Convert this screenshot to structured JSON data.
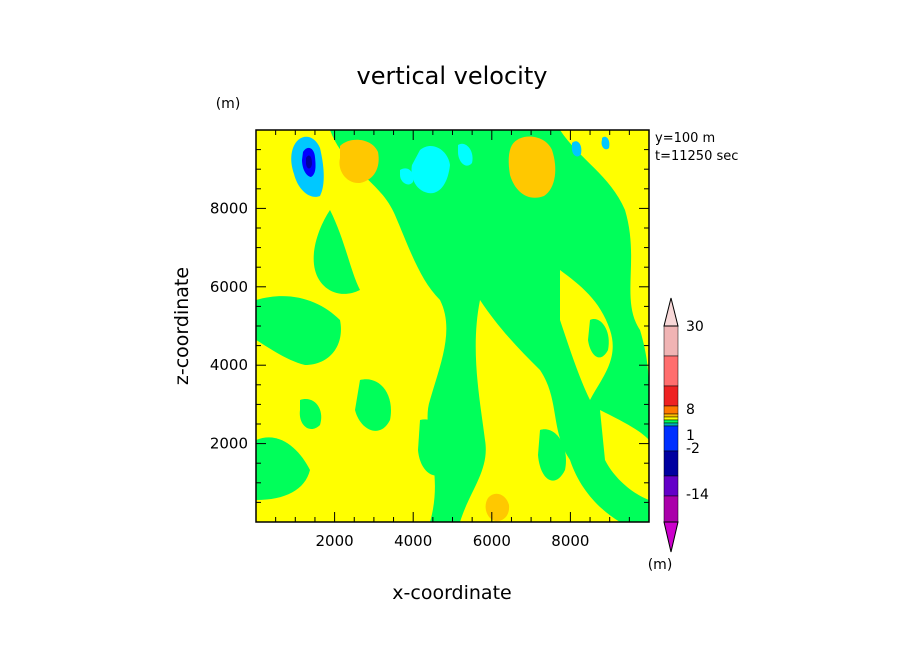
{
  "chart_data": {
    "type": "heatmap",
    "title": "vertical velocity",
    "xlabel": "x-coordinate",
    "ylabel": "z-coordinate",
    "x_unit": "(m)",
    "y_unit": "(m)",
    "colorbar_unit": "(m)",
    "annotation_lines": [
      "y=100 m",
      "t=11250 sec"
    ],
    "xlim": [
      0,
      10000
    ],
    "ylim": [
      0,
      10000
    ],
    "x_ticks": [
      2000,
      4000,
      6000,
      8000
    ],
    "y_ticks": [
      2000,
      4000,
      6000,
      8000
    ],
    "x_tick_labels": [
      "2000",
      "4000",
      "6000",
      "8000"
    ],
    "y_tick_labels": [
      "2000",
      "4000",
      "6000",
      "8000"
    ],
    "colorbar": {
      "levels_top_to_bottom": [
        {
          "color": "#f0b4b4"
        },
        {
          "color": "#ff6e6e"
        },
        {
          "color": "#ee2222"
        },
        {
          "color": "#ff7800"
        },
        {
          "color": "#ffbe00"
        },
        {
          "color": "#ffff00"
        },
        {
          "color": "#00ff5a"
        },
        {
          "color": "#00b4b4"
        },
        {
          "color": "#0030ff"
        },
        {
          "color": "#0000a0"
        },
        {
          "color": "#6400c8"
        },
        {
          "color": "#aa00aa"
        }
      ],
      "triangle_top": "#f8d8d8",
      "triangle_bottom": "#cc00cc",
      "labels": [
        "30",
        "8",
        "1",
        "-2",
        "-14"
      ]
    },
    "field_colors": {
      "yellow": "#ffff00",
      "green": "#00ff5a",
      "orange": "#ffc800",
      "cyan": "#00ffff",
      "lightblue": "#00c8ff",
      "blue": "#0000ff",
      "navy": "#0000a0"
    }
  }
}
